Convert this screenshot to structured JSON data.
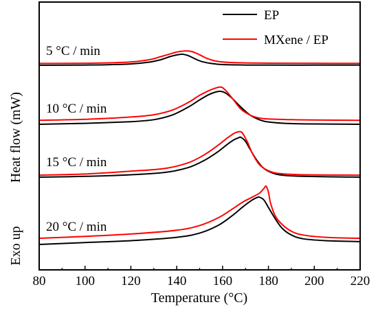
{
  "chart_data": {
    "type": "line",
    "xlabel": "Temperature (°C)",
    "ylabel": "Heat flow (mW)",
    "ylabel_extra": "Exo up",
    "xlim": [
      80,
      220
    ],
    "x_ticks": [
      "80",
      "100",
      "120",
      "140",
      "160",
      "180",
      "200",
      "220"
    ],
    "grid": false,
    "legend_position": "top-right",
    "legend": [
      {
        "name": "EP",
        "color": "#000000"
      },
      {
        "name": "MXene / EP",
        "color": "#ff0000"
      }
    ],
    "groups": [
      {
        "label": "5 °C / min",
        "series": [
          {
            "name": "EP",
            "color": "#000000",
            "x": [
              80,
              100,
              110,
              120,
              128,
              133,
              137,
              140,
              142,
              143,
              145,
              148,
              151,
              155,
              160,
              170,
              180,
              200,
              220
            ],
            "y": [
              0.0,
              0.02,
              0.05,
              0.12,
              0.28,
              0.5,
              0.78,
              0.94,
              1.0,
              0.99,
              0.88,
              0.58,
              0.33,
              0.16,
              0.06,
              0.02,
              0.01,
              0.01,
              0.01
            ]
          },
          {
            "name": "MXene / EP",
            "color": "#ff0000",
            "x": [
              80,
              100,
              110,
              120,
              128,
              133,
              137,
              140,
              143,
              145,
              147,
              150,
              153,
              157,
              162,
              170,
              180,
              200,
              220
            ],
            "y": [
              0.16,
              0.18,
              0.22,
              0.3,
              0.5,
              0.78,
              1.02,
              1.2,
              1.29,
              1.3,
              1.22,
              0.95,
              0.64,
              0.38,
              0.26,
              0.21,
              0.19,
              0.18,
              0.17
            ]
          }
        ]
      },
      {
        "label": "10 °C / min",
        "series": [
          {
            "name": "EP",
            "color": "#000000",
            "x": [
              80,
              100,
              120,
              130,
              138,
              145,
              150,
              154,
              157,
              159,
              161,
              164,
              168,
              172,
              176,
              180,
              190,
              200,
              220
            ],
            "y": [
              0.0,
              0.03,
              0.08,
              0.14,
              0.28,
              0.52,
              0.74,
              0.9,
              0.98,
              1.0,
              0.96,
              0.8,
              0.52,
              0.28,
              0.14,
              0.07,
              0.02,
              0.01,
              0.0
            ]
          },
          {
            "name": "MXene / EP",
            "color": "#ff0000",
            "x": [
              80,
              100,
              120,
              130,
              138,
              145,
              150,
              154,
              157,
              159,
              160,
              162,
              165,
              168,
              172,
              176,
              180,
              190,
              200,
              220
            ],
            "y": [
              0.12,
              0.15,
              0.22,
              0.29,
              0.43,
              0.66,
              0.88,
              1.02,
              1.1,
              1.13,
              1.11,
              0.98,
              0.72,
              0.46,
              0.28,
              0.19,
              0.16,
              0.14,
              0.13,
              0.12
            ]
          }
        ]
      },
      {
        "label": "15 °C / min",
        "series": [
          {
            "name": "EP",
            "color": "#000000",
            "x": [
              80,
              100,
              120,
              135,
              145,
              152,
              158,
              162,
              165,
              167,
              168,
              170,
              172,
              175,
              178,
              182,
              186,
              195,
              220
            ],
            "y": [
              0.0,
              0.02,
              0.06,
              0.12,
              0.24,
              0.42,
              0.64,
              0.82,
              0.94,
              0.99,
              1.0,
              0.9,
              0.7,
              0.42,
              0.22,
              0.1,
              0.05,
              0.02,
              0.0
            ]
          },
          {
            "name": "MXene / EP",
            "color": "#ff0000",
            "x": [
              80,
              100,
              120,
              135,
              145,
              152,
              158,
              162,
              165,
              167,
              168,
              169,
              171,
              173,
              176,
              180,
              185,
              195,
              220
            ],
            "y": [
              0.05,
              0.08,
              0.15,
              0.22,
              0.36,
              0.56,
              0.8,
              0.98,
              1.1,
              1.14,
              1.14,
              1.08,
              0.86,
              0.6,
              0.32,
              0.16,
              0.09,
              0.06,
              0.05
            ]
          }
        ]
      },
      {
        "label": "20 °C / min",
        "series": [
          {
            "name": "EP",
            "color": "#000000",
            "x": [
              80,
              100,
              120,
              140,
              150,
              158,
              164,
              169,
              173,
              175,
              176,
              178,
              180,
              183,
              186,
              190,
              195,
              205,
              220
            ],
            "y": [
              0.0,
              0.04,
              0.08,
              0.15,
              0.24,
              0.4,
              0.6,
              0.8,
              0.94,
              0.99,
              1.0,
              0.94,
              0.78,
              0.54,
              0.34,
              0.2,
              0.12,
              0.08,
              0.06
            ]
          },
          {
            "name": "MXene / EP",
            "color": "#ff0000",
            "x": [
              80,
              100,
              120,
              140,
              150,
              158,
              164,
              169,
              173,
              176,
              178,
              179,
              180,
              181,
              183,
              186,
              190,
              195,
              205,
              220
            ],
            "y": [
              0.13,
              0.17,
              0.22,
              0.3,
              0.4,
              0.56,
              0.74,
              0.9,
              1.0,
              1.08,
              1.18,
              1.23,
              1.1,
              0.86,
              0.6,
              0.42,
              0.28,
              0.2,
              0.15,
              0.13
            ]
          }
        ]
      }
    ]
  }
}
